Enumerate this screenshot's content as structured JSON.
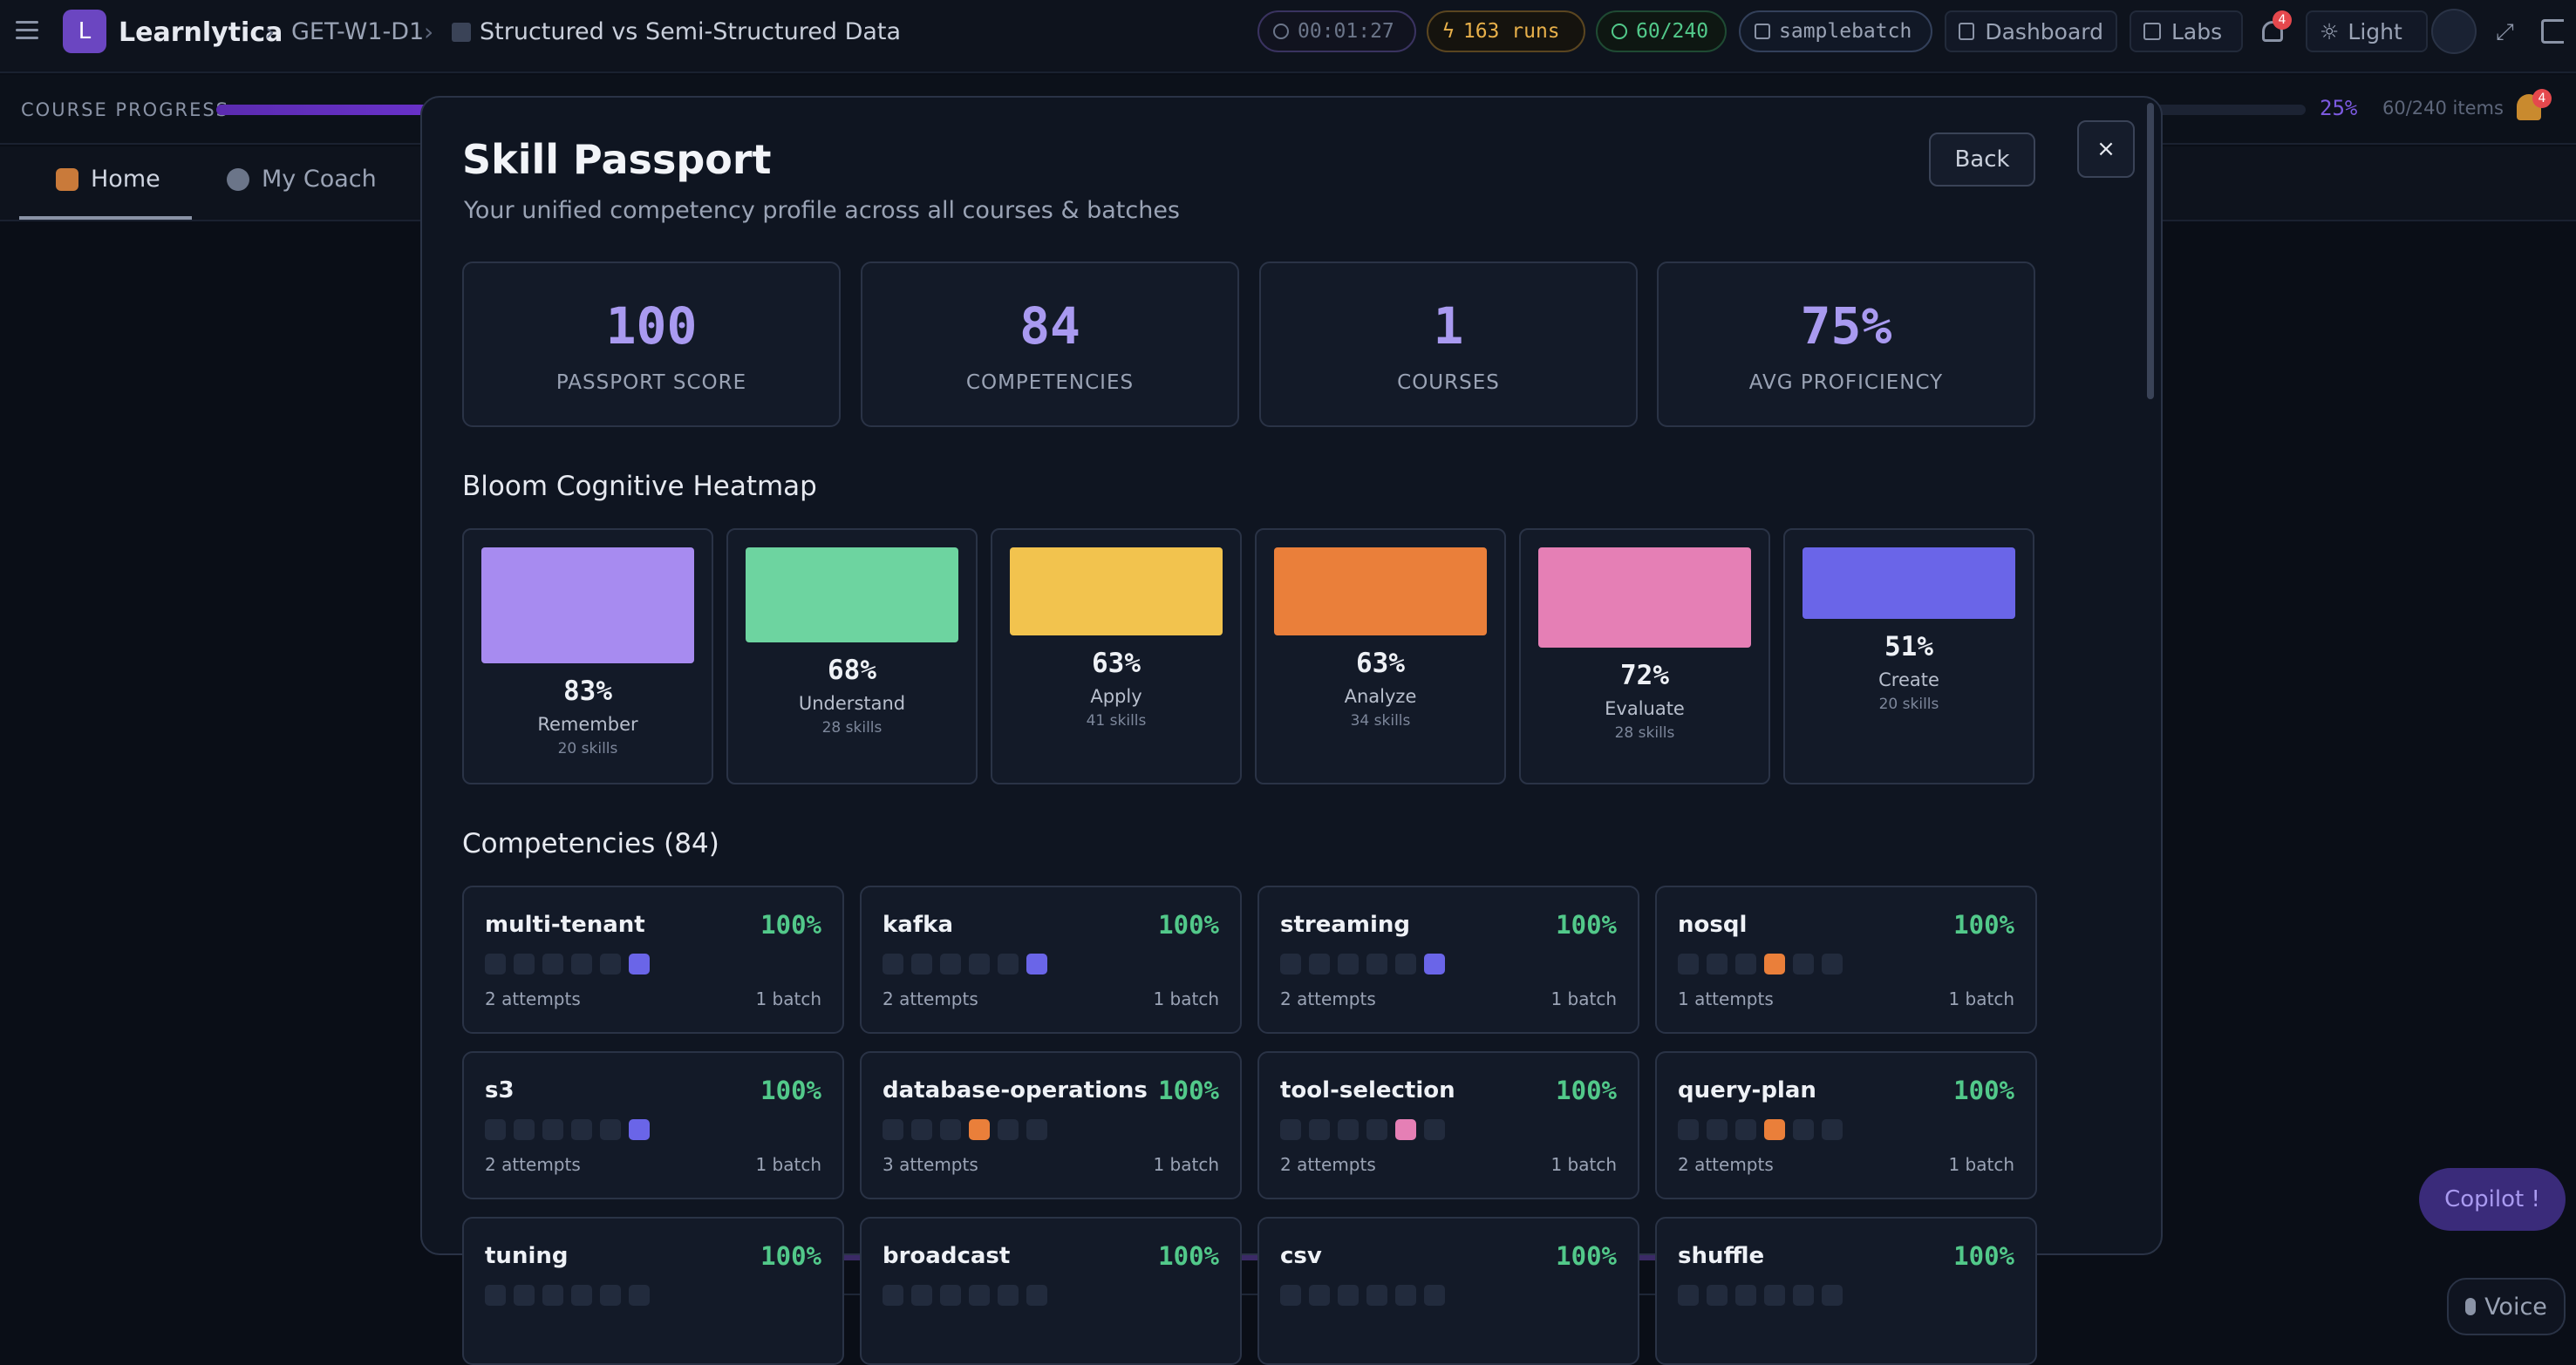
{
  "app": {
    "brand": "Learnlytica",
    "logo_letter": "L"
  },
  "breadcrumb": {
    "code": "GET-W1-D1",
    "title": "Structured vs Semi-Structured Data"
  },
  "chips": {
    "timer": "00:01:27",
    "runs": "163 runs",
    "done": "60/240",
    "batch": "samplebatch"
  },
  "toolbar": {
    "dashboard": "Dashboard",
    "labs": "Labs",
    "theme": "Light",
    "notifications": "4"
  },
  "progress": {
    "label": "COURSE PROGRESS",
    "percent_text": "25%",
    "fraction": 0.25,
    "items": "60/240 items",
    "notif_count": "4"
  },
  "tabs": [
    {
      "label": "Home"
    },
    {
      "label": "My Coach"
    }
  ],
  "floating": {
    "copilot": "Copilot !",
    "voice": "Voice"
  },
  "modal": {
    "title": "Skill Passport",
    "subtitle": "Your unified competency profile across all courses & batches",
    "back": "Back",
    "close": "×",
    "stats": [
      {
        "value": "100",
        "label": "PASSPORT SCORE"
      },
      {
        "value": "84",
        "label": "COMPETENCIES"
      },
      {
        "value": "1",
        "label": "COURSES"
      },
      {
        "value": "75%",
        "label": "AVG PROFICIENCY"
      }
    ],
    "heatmap_title": "Bloom Cognitive Heatmap",
    "bloom": [
      {
        "pct": "83%",
        "name": "Remember",
        "skills": "20 skills",
        "value": 0.83,
        "color": "#a78bf0"
      },
      {
        "pct": "68%",
        "name": "Understand",
        "skills": "28 skills",
        "value": 0.68,
        "color": "#6dd4a0"
      },
      {
        "pct": "63%",
        "name": "Apply",
        "skills": "41 skills",
        "value": 0.63,
        "color": "#f2c34e"
      },
      {
        "pct": "63%",
        "name": "Analyze",
        "skills": "34 skills",
        "value": 0.63,
        "color": "#ea7f3a"
      },
      {
        "pct": "72%",
        "name": "Evaluate",
        "skills": "28 skills",
        "value": 0.72,
        "color": "#e57fb5"
      },
      {
        "pct": "51%",
        "name": "Create",
        "skills": "20 skills",
        "value": 0.51,
        "color": "#6a65e8"
      }
    ],
    "competencies_title": "Competencies (84)",
    "competencies": [
      {
        "name": "multi-tenant",
        "pct": "100%",
        "attempts": "2 attempts",
        "batch": "1 batch",
        "level": 6,
        "color": "#6a65e8"
      },
      {
        "name": "kafka",
        "pct": "100%",
        "attempts": "2 attempts",
        "batch": "1 batch",
        "level": 6,
        "color": "#6a65e8"
      },
      {
        "name": "streaming",
        "pct": "100%",
        "attempts": "2 attempts",
        "batch": "1 batch",
        "level": 6,
        "color": "#6a65e8"
      },
      {
        "name": "nosql",
        "pct": "100%",
        "attempts": "1 attempts",
        "batch": "1 batch",
        "level": 4,
        "color": "#ea7f3a"
      },
      {
        "name": "s3",
        "pct": "100%",
        "attempts": "2 attempts",
        "batch": "1 batch",
        "level": 6,
        "color": "#6a65e8"
      },
      {
        "name": "database-operations",
        "pct": "100%",
        "attempts": "3 attempts",
        "batch": "1 batch",
        "level": 4,
        "color": "#ea7f3a"
      },
      {
        "name": "tool-selection",
        "pct": "100%",
        "attempts": "2 attempts",
        "batch": "1 batch",
        "level": 5,
        "color": "#e57fb5"
      },
      {
        "name": "query-plan",
        "pct": "100%",
        "attempts": "2 attempts",
        "batch": "1 batch",
        "level": 4,
        "color": "#ea7f3a"
      },
      {
        "name": "tuning",
        "pct": "100%",
        "attempts": "",
        "batch": "",
        "level": 0,
        "color": "#6a65e8"
      },
      {
        "name": "broadcast",
        "pct": "100%",
        "attempts": "",
        "batch": "",
        "level": 0,
        "color": "#6a65e8"
      },
      {
        "name": "csv",
        "pct": "100%",
        "attempts": "",
        "batch": "",
        "level": 0,
        "color": "#6a65e8"
      },
      {
        "name": "shuffle",
        "pct": "100%",
        "attempts": "",
        "batch": "",
        "level": 0,
        "color": "#6a65e8"
      }
    ]
  }
}
